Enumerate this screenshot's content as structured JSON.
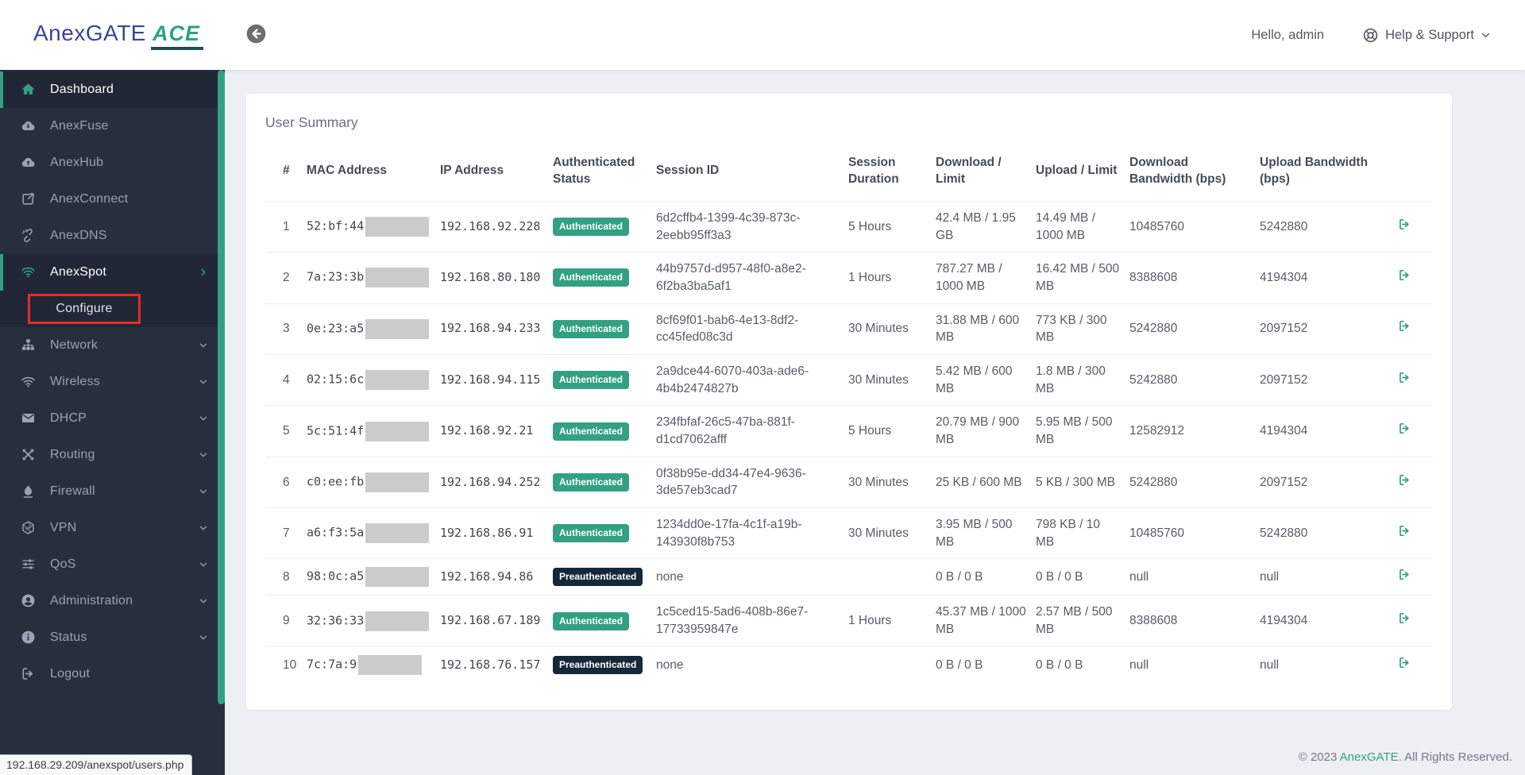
{
  "header": {
    "logo_text": "AnexGATE",
    "logo_badge": "ACE",
    "greeting": "Hello, admin",
    "help_label": "Help & Support",
    "icons": {
      "collapse": "circle-arrow-left-icon",
      "help": "life-ring-icon",
      "help_chevron": "chevron-down-icon"
    }
  },
  "sidebar": {
    "items": [
      {
        "label": "Dashboard",
        "icon": "home-icon",
        "active": true
      },
      {
        "label": "AnexFuse",
        "icon": "cloud-download-icon"
      },
      {
        "label": "AnexHub",
        "icon": "cloud-upload-icon"
      },
      {
        "label": "AnexConnect",
        "icon": "external-link-icon"
      },
      {
        "label": "AnexDNS",
        "icon": "unlink-icon"
      },
      {
        "label": "AnexSpot",
        "icon": "wifi-icon",
        "active": true,
        "chevron": "right"
      },
      {
        "label": "Configure",
        "submenu": true,
        "highlighted": true
      },
      {
        "label": "Network",
        "icon": "sitemap-icon",
        "chevron": "down"
      },
      {
        "label": "Wireless",
        "icon": "wifi-icon",
        "chevron": "down"
      },
      {
        "label": "DHCP",
        "icon": "envelope-icon",
        "chevron": "down"
      },
      {
        "label": "Routing",
        "icon": "arrows-icon",
        "chevron": "down"
      },
      {
        "label": "Firewall",
        "icon": "flame-icon",
        "chevron": "down"
      },
      {
        "label": "VPN",
        "icon": "hexagon-icon",
        "chevron": "down"
      },
      {
        "label": "QoS",
        "icon": "sliders-icon",
        "chevron": "down"
      },
      {
        "label": "Administration",
        "icon": "user-icon",
        "chevron": "down"
      },
      {
        "label": "Status",
        "icon": "info-icon",
        "chevron": "down"
      },
      {
        "label": "Logout",
        "icon": "logout-icon"
      }
    ]
  },
  "main": {
    "card_title": "User Summary",
    "table": {
      "headers": [
        "#",
        "MAC Address",
        "IP Address",
        "Authenticated Status",
        "Session ID",
        "Session Duration",
        "Download / Limit",
        "Upload / Limit",
        "Download Bandwidth (bps)",
        "Upload Bandwidth (bps)",
        ""
      ],
      "action_icon": "sign-out-icon",
      "rows": [
        {
          "num": "1",
          "mac": "52:bf:44",
          "ip": "192.168.92.228",
          "status": "Authenticated",
          "session_id": "6d2cffb4-1399-4c39-873c-2eebb95ff3a3",
          "duration": "5 Hours",
          "download": "42.4 MB / 1.95 GB",
          "upload": "14.49 MB / 1000 MB",
          "dl_bw": "10485760",
          "ul_bw": "5242880"
        },
        {
          "num": "2",
          "mac": "7a:23:3b",
          "ip": "192.168.80.180",
          "status": "Authenticated",
          "session_id": "44b9757d-d957-48f0-a8e2-6f2ba3ba5af1",
          "duration": "1 Hours",
          "download": "787.27 MB / 1000 MB",
          "upload": "16.42 MB / 500 MB",
          "dl_bw": "8388608",
          "ul_bw": "4194304"
        },
        {
          "num": "3",
          "mac": "0e:23:a5",
          "ip": "192.168.94.233",
          "status": "Authenticated",
          "session_id": "8cf69f01-bab6-4e13-8df2-cc45fed08c3d",
          "duration": "30 Minutes",
          "download": "31.88 MB / 600 MB",
          "upload": "773 KB / 300 MB",
          "dl_bw": "5242880",
          "ul_bw": "2097152"
        },
        {
          "num": "4",
          "mac": "02:15:6c",
          "ip": "192.168.94.115",
          "status": "Authenticated",
          "session_id": "2a9dce44-6070-403a-ade6-4b4b2474827b",
          "duration": "30 Minutes",
          "download": "5.42 MB / 600 MB",
          "upload": "1.8 MB / 300 MB",
          "dl_bw": "5242880",
          "ul_bw": "2097152"
        },
        {
          "num": "5",
          "mac": "5c:51:4f",
          "ip": "192.168.92.21",
          "status": "Authenticated",
          "session_id": "234fbfaf-26c5-47ba-881f-d1cd7062afff",
          "duration": "5 Hours",
          "download": "20.79 MB / 900 MB",
          "upload": "5.95 MB / 500 MB",
          "dl_bw": "12582912",
          "ul_bw": "4194304"
        },
        {
          "num": "6",
          "mac": "c0:ee:fb",
          "ip": "192.168.94.252",
          "status": "Authenticated",
          "session_id": "0f38b95e-dd34-47e4-9636-3de57eb3cad7",
          "duration": "30 Minutes",
          "download": "25 KB / 600 MB",
          "upload": "5 KB / 300 MB",
          "dl_bw": "5242880",
          "ul_bw": "2097152"
        },
        {
          "num": "7",
          "mac": "a6:f3:5a",
          "ip": "192.168.86.91",
          "status": "Authenticated",
          "session_id": "1234dd0e-17fa-4c1f-a19b-143930f8b753",
          "duration": "30 Minutes",
          "download": "3.95 MB / 500 MB",
          "upload": "798 KB / 10 MB",
          "dl_bw": "10485760",
          "ul_bw": "5242880"
        },
        {
          "num": "8",
          "mac": "98:0c:a5",
          "ip": "192.168.94.86",
          "status": "Preauthenticated",
          "session_id": "none",
          "duration": "",
          "download": "0 B / 0 B",
          "upload": "0 B / 0 B",
          "dl_bw": "null",
          "ul_bw": "null"
        },
        {
          "num": "9",
          "mac": "32:36:33",
          "ip": "192.168.67.189",
          "status": "Authenticated",
          "session_id": "1c5ced15-5ad6-408b-86e7-17733959847e",
          "duration": "1 Hours",
          "download": "45.37 MB / 1000 MB",
          "upload": "2.57 MB / 500 MB",
          "dl_bw": "8388608",
          "ul_bw": "4194304"
        },
        {
          "num": "10",
          "mac": "7c:7a:9",
          "ip": "192.168.76.157",
          "status": "Preauthenticated",
          "session_id": "none",
          "duration": "",
          "download": "0 B / 0 B",
          "upload": "0 B / 0 B",
          "dl_bw": "null",
          "ul_bw": "null"
        }
      ]
    }
  },
  "footer": {
    "prefix": "© 2023 ",
    "brand": "AnexGATE",
    "suffix": ". All Rights Reserved."
  },
  "status_bar": {
    "url": "192.168.29.209/anexspot/users.php"
  },
  "colors": {
    "accent_green": "#32a183",
    "sidebar_bg": "#272e3c",
    "sidebar_active_bg": "#212734",
    "auth_badge": "#32a183",
    "preauth_badge": "#152839",
    "highlight_red": "#e12d2d",
    "logo_navy": "#3d4394",
    "logo_green": "#2ba183",
    "main_bg": "#edeff4",
    "redaction_gray": "#cbcbcb"
  }
}
